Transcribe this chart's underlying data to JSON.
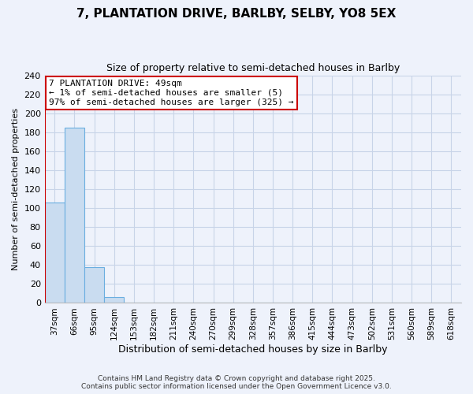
{
  "title": "7, PLANTATION DRIVE, BARLBY, SELBY, YO8 5EX",
  "subtitle": "Size of property relative to semi-detached houses in Barlby",
  "xlabel": "Distribution of semi-detached houses by size in Barlby",
  "ylabel": "Number of semi-detached properties",
  "bar_labels": [
    "37sqm",
    "66sqm",
    "95sqm",
    "124sqm",
    "153sqm",
    "182sqm",
    "211sqm",
    "240sqm",
    "270sqm",
    "299sqm",
    "328sqm",
    "357sqm",
    "386sqm",
    "415sqm",
    "444sqm",
    "473sqm",
    "502sqm",
    "531sqm",
    "560sqm",
    "589sqm",
    "618sqm"
  ],
  "bar_values": [
    106,
    185,
    38,
    6,
    0,
    0,
    0,
    0,
    0,
    0,
    0,
    0,
    0,
    0,
    0,
    0,
    0,
    0,
    0,
    0,
    0
  ],
  "bar_color": "#c9dcf0",
  "bar_edge_color": "#6aaee0",
  "highlight_line_color": "#cc0000",
  "ylim": [
    0,
    240
  ],
  "yticks": [
    0,
    20,
    40,
    60,
    80,
    100,
    120,
    140,
    160,
    180,
    200,
    220,
    240
  ],
  "annotation_title": "7 PLANTATION DRIVE: 49sqm",
  "annotation_line1": "← 1% of semi-detached houses are smaller (5)",
  "annotation_line2": "97% of semi-detached houses are larger (325) →",
  "annotation_box_color": "#ffffff",
  "annotation_box_edge": "#cc0000",
  "background_color": "#eef2fb",
  "grid_color": "#c8d4e8",
  "footer1": "Contains HM Land Registry data © Crown copyright and database right 2025.",
  "footer2": "Contains public sector information licensed under the Open Government Licence v3.0."
}
